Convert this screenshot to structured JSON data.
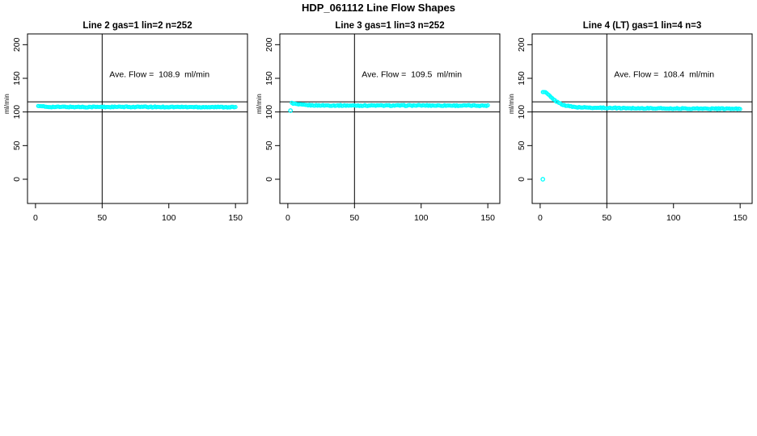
{
  "figure_title": "HDP_061112  Line Flow Shapes",
  "colors": {
    "points": "#00FFFF",
    "axis": "#000000",
    "background": "#FFFFFF"
  },
  "chart_data": [
    {
      "type": "scatter",
      "title": "Line 2 gas=1 lin=2 n=252",
      "line": 2,
      "gas": 1,
      "lin": 2,
      "n": 252,
      "annotation": "Ave. Flow =  108.9  ml/min",
      "ave_flow_ml_min": 108.9,
      "ylabel": "ml/min",
      "x_ticks": [
        0,
        50,
        100,
        150
      ],
      "y_ticks": [
        0,
        50,
        100,
        150,
        200
      ],
      "xlim": [
        -6,
        159
      ],
      "ylim": [
        -36,
        216
      ],
      "grid": false,
      "legend": false,
      "vline_x": 50,
      "hlines_y": [
        100,
        115
      ],
      "annotation_pos": [
        93,
        152
      ],
      "x_range": [
        2,
        150
      ],
      "display_points": 148,
      "noise": 1.4,
      "series_keypoints": [
        [
          2,
          109.6
        ],
        [
          4,
          108.2
        ],
        [
          8,
          107.6
        ],
        [
          15,
          107.4
        ],
        [
          30,
          107.4
        ],
        [
          60,
          107.4
        ],
        [
          90,
          107.4
        ],
        [
          120,
          107.3
        ],
        [
          150,
          107.2
        ]
      ],
      "outliers": []
    },
    {
      "type": "scatter",
      "title": "Line 3 gas=1 lin=3 n=252",
      "line": 3,
      "gas": 1,
      "lin": 3,
      "n": 252,
      "annotation": "Ave. Flow =  109.5  ml/min",
      "ave_flow_ml_min": 109.5,
      "ylabel": "ml/min",
      "x_ticks": [
        0,
        50,
        100,
        150
      ],
      "y_ticks": [
        0,
        50,
        100,
        150,
        200
      ],
      "xlim": [
        -6,
        159
      ],
      "ylim": [
        -36,
        216
      ],
      "grid": false,
      "legend": false,
      "vline_x": 50,
      "hlines_y": [
        100,
        115
      ],
      "annotation_pos": [
        93,
        152
      ],
      "x_range": [
        3,
        150
      ],
      "display_points": 146,
      "noise": 1.4,
      "series_keypoints": [
        [
          3,
          113.2
        ],
        [
          5,
          112.2
        ],
        [
          8,
          111.0
        ],
        [
          12,
          110.3
        ],
        [
          20,
          109.8
        ],
        [
          35,
          109.6
        ],
        [
          50,
          109.5
        ],
        [
          75,
          109.5
        ],
        [
          100,
          109.6
        ],
        [
          125,
          109.5
        ],
        [
          150,
          109.4
        ]
      ],
      "outliers": [
        [
          2,
          102
        ]
      ]
    },
    {
      "type": "scatter",
      "title": "Line 4 (LT) gas=1 lin=4 n=3",
      "line": 4,
      "line_note": "LT",
      "gas": 1,
      "lin": 4,
      "n": 3,
      "annotation": "Ave. Flow =  108.4  ml/min",
      "ave_flow_ml_min": 108.4,
      "ylabel": "ml/min",
      "x_ticks": [
        0,
        50,
        100,
        150
      ],
      "y_ticks": [
        0,
        50,
        100,
        150,
        200
      ],
      "xlim": [
        -6,
        159
      ],
      "ylim": [
        -36,
        216
      ],
      "grid": false,
      "legend": false,
      "vline_x": 50,
      "hlines_y": [
        100,
        115
      ],
      "annotation_pos": [
        93,
        152
      ],
      "x_range": [
        2,
        150
      ],
      "display_points": 148,
      "noise": 1.4,
      "series_keypoints": [
        [
          2,
          130
        ],
        [
          4,
          129
        ],
        [
          6,
          126
        ],
        [
          8,
          122
        ],
        [
          10,
          118.5
        ],
        [
          13,
          114.5
        ],
        [
          16,
          111.5
        ],
        [
          20,
          109
        ],
        [
          25,
          107.5
        ],
        [
          30,
          106.8
        ],
        [
          40,
          106.2
        ],
        [
          50,
          106
        ],
        [
          70,
          105.5
        ],
        [
          90,
          105.2
        ],
        [
          110,
          105
        ],
        [
          130,
          104.8
        ],
        [
          150,
          104.6
        ]
      ],
      "outliers": [
        [
          2,
          0
        ]
      ]
    }
  ]
}
